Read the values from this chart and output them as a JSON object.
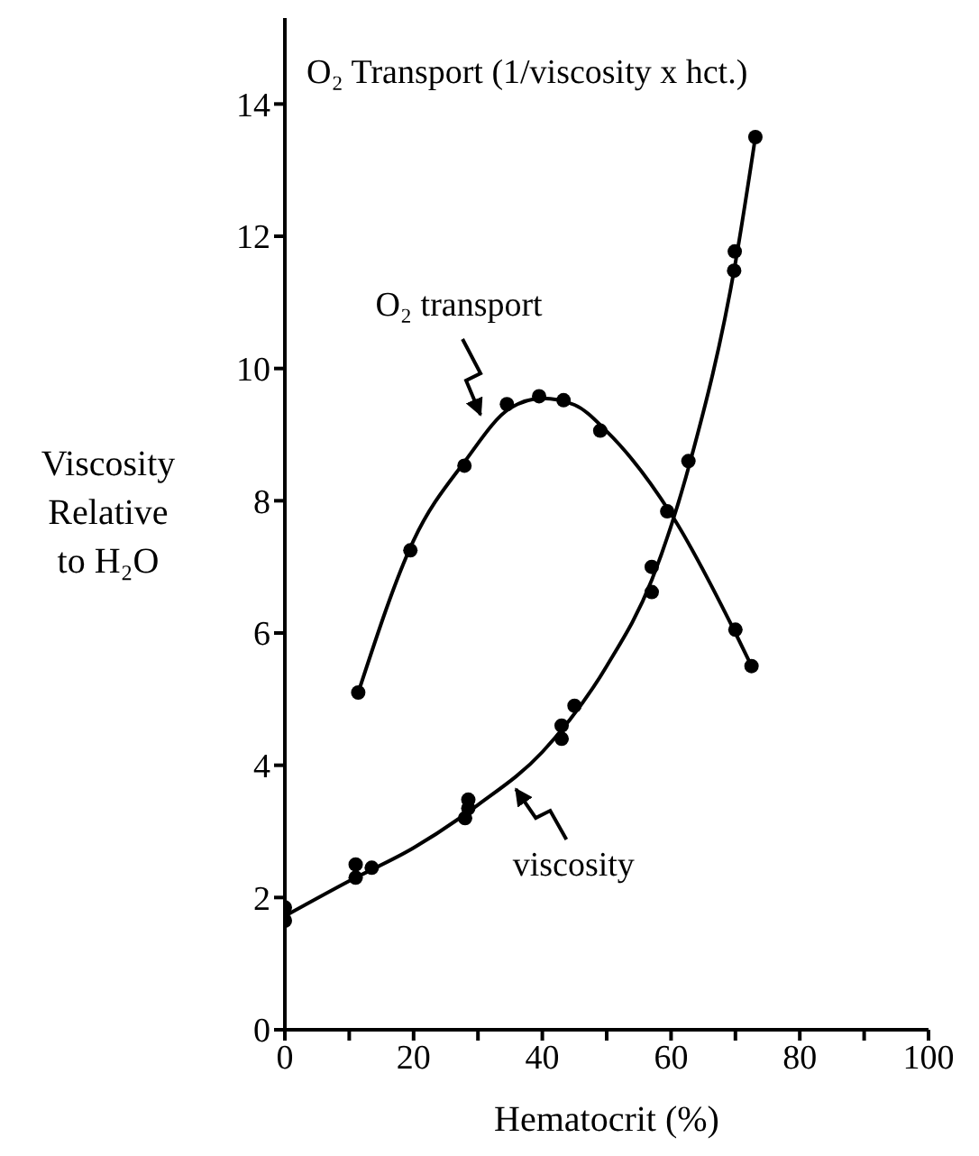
{
  "chart_data": {
    "type": "scatter",
    "xlabel": "Hematocrit (%)",
    "ylabel": "Viscosity Relative to H₂O",
    "xlim": [
      0,
      100
    ],
    "ylim": [
      0,
      15.3
    ],
    "xticks": [
      0,
      {
        "value": 10,
        "label": null
      },
      20,
      {
        "value": 30,
        "label": null
      },
      40,
      {
        "value": 50,
        "label": null
      },
      60,
      {
        "value": 70,
        "label": null
      },
      80,
      {
        "value": 90,
        "label": null
      },
      100
    ],
    "yticks": [
      0,
      2,
      4,
      6,
      8,
      10,
      12,
      14
    ],
    "marker": "circle",
    "series": [
      {
        "color": "#000000",
        "x": [
          11.4,
          19.5,
          27.9,
          34.5,
          39.5,
          43.3,
          49,
          59.4,
          70,
          72.5
        ],
        "values": [
          5.1,
          7.25,
          8.53,
          9.46,
          9.58,
          9.52,
          9.06,
          7.84,
          6.05,
          5.5
        ]
      },
      {
        "type": "line",
        "color": "#000000",
        "marker": "none",
        "x": [
          11.4,
          20,
          28,
          35,
          40,
          45,
          50,
          60,
          70,
          72.5
        ],
        "values": [
          5.1,
          7.4,
          8.6,
          9.4,
          9.55,
          9.45,
          9.05,
          7.8,
          6.0,
          5.5
        ]
      },
      {
        "color": "#000000",
        "x": [
          0,
          0,
          11,
          11,
          13.5,
          28,
          28.5,
          28.5,
          43,
          43,
          45,
          57,
          57,
          62.7,
          69.9,
          69.8,
          73.1
        ],
        "values": [
          1.85,
          1.65,
          2.5,
          2.3,
          2.45,
          3.2,
          3.35,
          3.48,
          4.6,
          4.4,
          4.9,
          7.0,
          6.62,
          8.6,
          11.77,
          11.48,
          13.5
        ]
      },
      {
        "type": "line",
        "color": "#000000",
        "marker": "none",
        "x": [
          0,
          10,
          20,
          30,
          40,
          50,
          57,
          63,
          70,
          73.1
        ],
        "values": [
          1.72,
          2.25,
          2.75,
          3.4,
          4.2,
          5.5,
          6.8,
          8.6,
          11.6,
          13.5
        ]
      }
    ],
    "annotations": [
      "O₂ Transport (1/viscosity x hct.)",
      "O₂ transport",
      "viscosity"
    ]
  }
}
